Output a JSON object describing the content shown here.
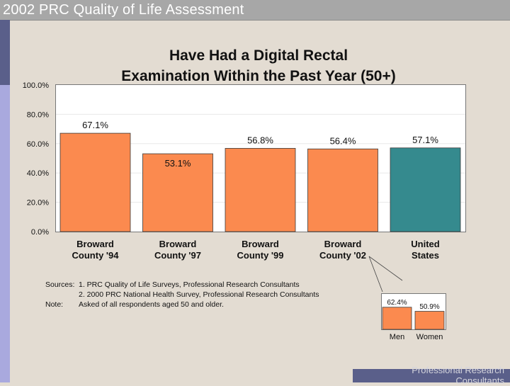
{
  "slide": {
    "title": "2002 PRC Quality of Life Assessment",
    "footer": "Professional Research Consultants"
  },
  "colors": {
    "orange": "#fb8a4f",
    "teal": "#358a8e",
    "header_gray": "#a7a7a7",
    "stripe_dark": "#5a5f8a",
    "stripe_light": "#a9a9de",
    "background": "#e3dcd2"
  },
  "chart_data": [
    {
      "type": "bar",
      "title": "Have Had a Digital Rectal Examination Within the Past Year (50+)",
      "title_lines": [
        "Have Had a Digital Rectal",
        "Examination Within the Past Year (50+)"
      ],
      "categories": [
        [
          "Broward",
          "County '94"
        ],
        [
          "Broward",
          "County '97"
        ],
        [
          "Broward",
          "County '99"
        ],
        [
          "Broward",
          "County '02"
        ],
        [
          "United",
          "States"
        ]
      ],
      "values": [
        67.1,
        53.1,
        56.8,
        56.4,
        57.1
      ],
      "value_labels": [
        "67.1%",
        "53.1%",
        "56.8%",
        "56.4%",
        "57.1%"
      ],
      "bar_colors": [
        "#fb8a4f",
        "#fb8a4f",
        "#fb8a4f",
        "#fb8a4f",
        "#358a8e"
      ],
      "ylim": [
        0,
        100
      ],
      "yticks": [
        0,
        20,
        40,
        60,
        80,
        100
      ],
      "ytick_labels": [
        "0.0%",
        "20.0%",
        "40.0%",
        "60.0%",
        "80.0%",
        "100.0%"
      ],
      "xlabel": "",
      "ylabel": "",
      "grid": true,
      "legend": "none"
    },
    {
      "type": "bar",
      "title": "",
      "categories": [
        "Men",
        "Women"
      ],
      "values": [
        62.4,
        50.9
      ],
      "value_labels": [
        "62.4%",
        "50.9%"
      ],
      "ylim": [
        0,
        100
      ],
      "detail_of": "Broward County '02"
    }
  ],
  "notes": {
    "sources_label": "Sources:",
    "source_1": "1.  PRC Quality of Life Surveys, Professional Research Consultants",
    "source_2": "2.  2000 PRC National Health Survey, Professional Research Consultants",
    "note_label": "Note:",
    "note_text": "Asked of all respondents aged 50 and older."
  }
}
